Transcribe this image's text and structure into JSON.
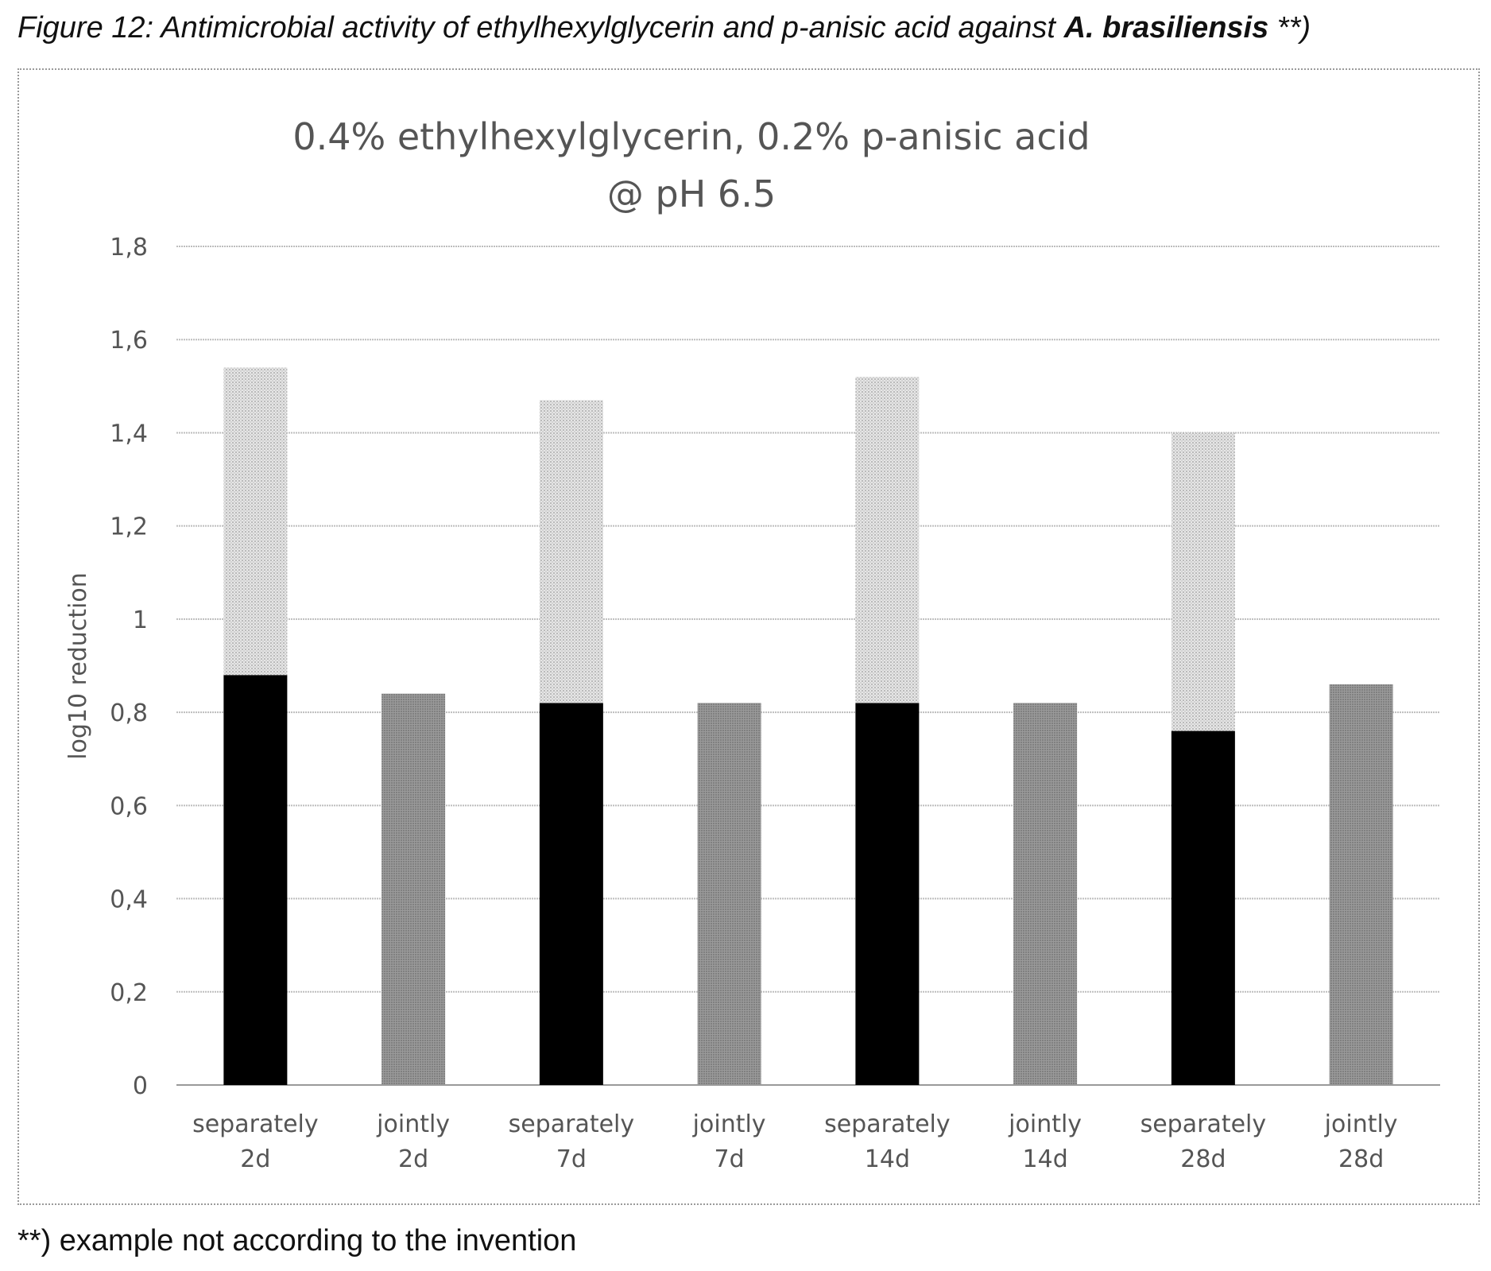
{
  "figure": {
    "caption_prefix": "Figure 12: Antimicrobial activity of ethylhexylglycerin and p-anisic acid against ",
    "caption_bold": "A. brasiliensis",
    "caption_suffix": " **)",
    "footnote": "**) example not according to the invention"
  },
  "chart_data": {
    "type": "bar",
    "title_line1": "0.4% ethylhexylglycerin, 0.2% p-anisic acid",
    "title_line2": "@ pH 6.5",
    "ylabel": "log10 reduction",
    "xlabel": "",
    "ylim": [
      0,
      1.8
    ],
    "yticks": [
      "0",
      "0,2",
      "0,4",
      "0,6",
      "0,8",
      "1",
      "1,2",
      "1,4",
      "1,6",
      "1,8"
    ],
    "grid": true,
    "legend": "none",
    "stacked": true,
    "categories": [
      [
        "separately",
        "2d"
      ],
      [
        "jointly",
        "2d"
      ],
      [
        "separately",
        "7d"
      ],
      [
        "jointly",
        "7d"
      ],
      [
        "separately",
        "14d"
      ],
      [
        "jointly",
        "14d"
      ],
      [
        "separately",
        "28d"
      ],
      [
        "jointly",
        "28d"
      ]
    ],
    "series": [
      {
        "values": [
          0.88,
          0.84,
          0.82,
          0.82,
          0.82,
          0.82,
          0.76,
          0.86
        ],
        "colors": [
          "#000000",
          "#8a8a8a",
          "#000000",
          "#8a8a8a",
          "#000000",
          "#8a8a8a",
          "#000000",
          "#8a8a8a"
        ]
      },
      {
        "values": [
          0.66,
          0,
          0.65,
          0,
          0.7,
          0,
          0.64,
          0
        ],
        "colors": [
          "#d9d9d9",
          "#d9d9d9",
          "#d9d9d9",
          "#d9d9d9",
          "#d9d9d9",
          "#d9d9d9",
          "#d9d9d9",
          "#d9d9d9"
        ]
      }
    ]
  }
}
